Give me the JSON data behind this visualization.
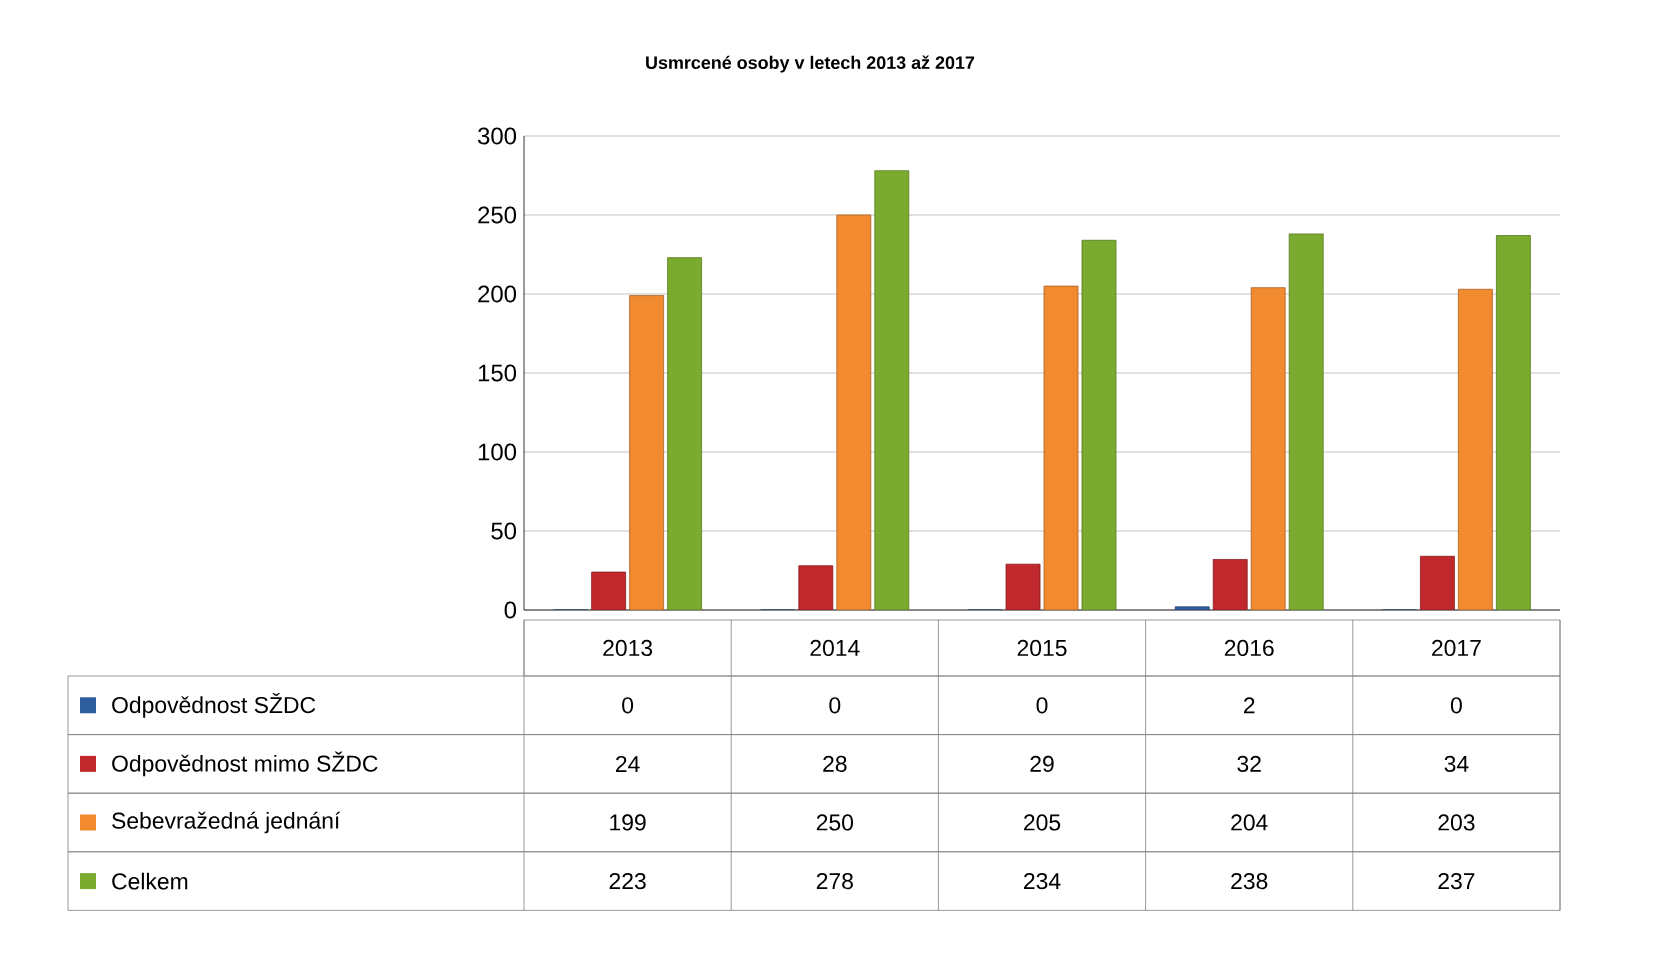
{
  "chart_data": {
    "type": "bar",
    "title": "Usmrcené osoby v letech 2013 až 2017",
    "categories": [
      "2013",
      "2014",
      "2015",
      "2016",
      "2017"
    ],
    "series": [
      {
        "name": "Odpovědnost SŽDC",
        "color": "#2e5e9e",
        "values": [
          0,
          0,
          0,
          2,
          0
        ]
      },
      {
        "name": "Odpovědnost mimo SŽDC",
        "color": "#c0282d",
        "values": [
          24,
          28,
          29,
          32,
          34
        ]
      },
      {
        "name": "Sebevražedná jednání",
        "color": "#f28a30",
        "values": [
          199,
          250,
          205,
          204,
          203
        ]
      },
      {
        "name": "Celkem",
        "color": "#7bab2e",
        "values": [
          223,
          278,
          234,
          238,
          237
        ]
      }
    ],
    "ylim": [
      0,
      300
    ],
    "yticks": [
      0,
      50,
      100,
      150,
      200,
      250,
      300
    ],
    "grid": "y",
    "legend": "bottom",
    "data_labels": true
  }
}
